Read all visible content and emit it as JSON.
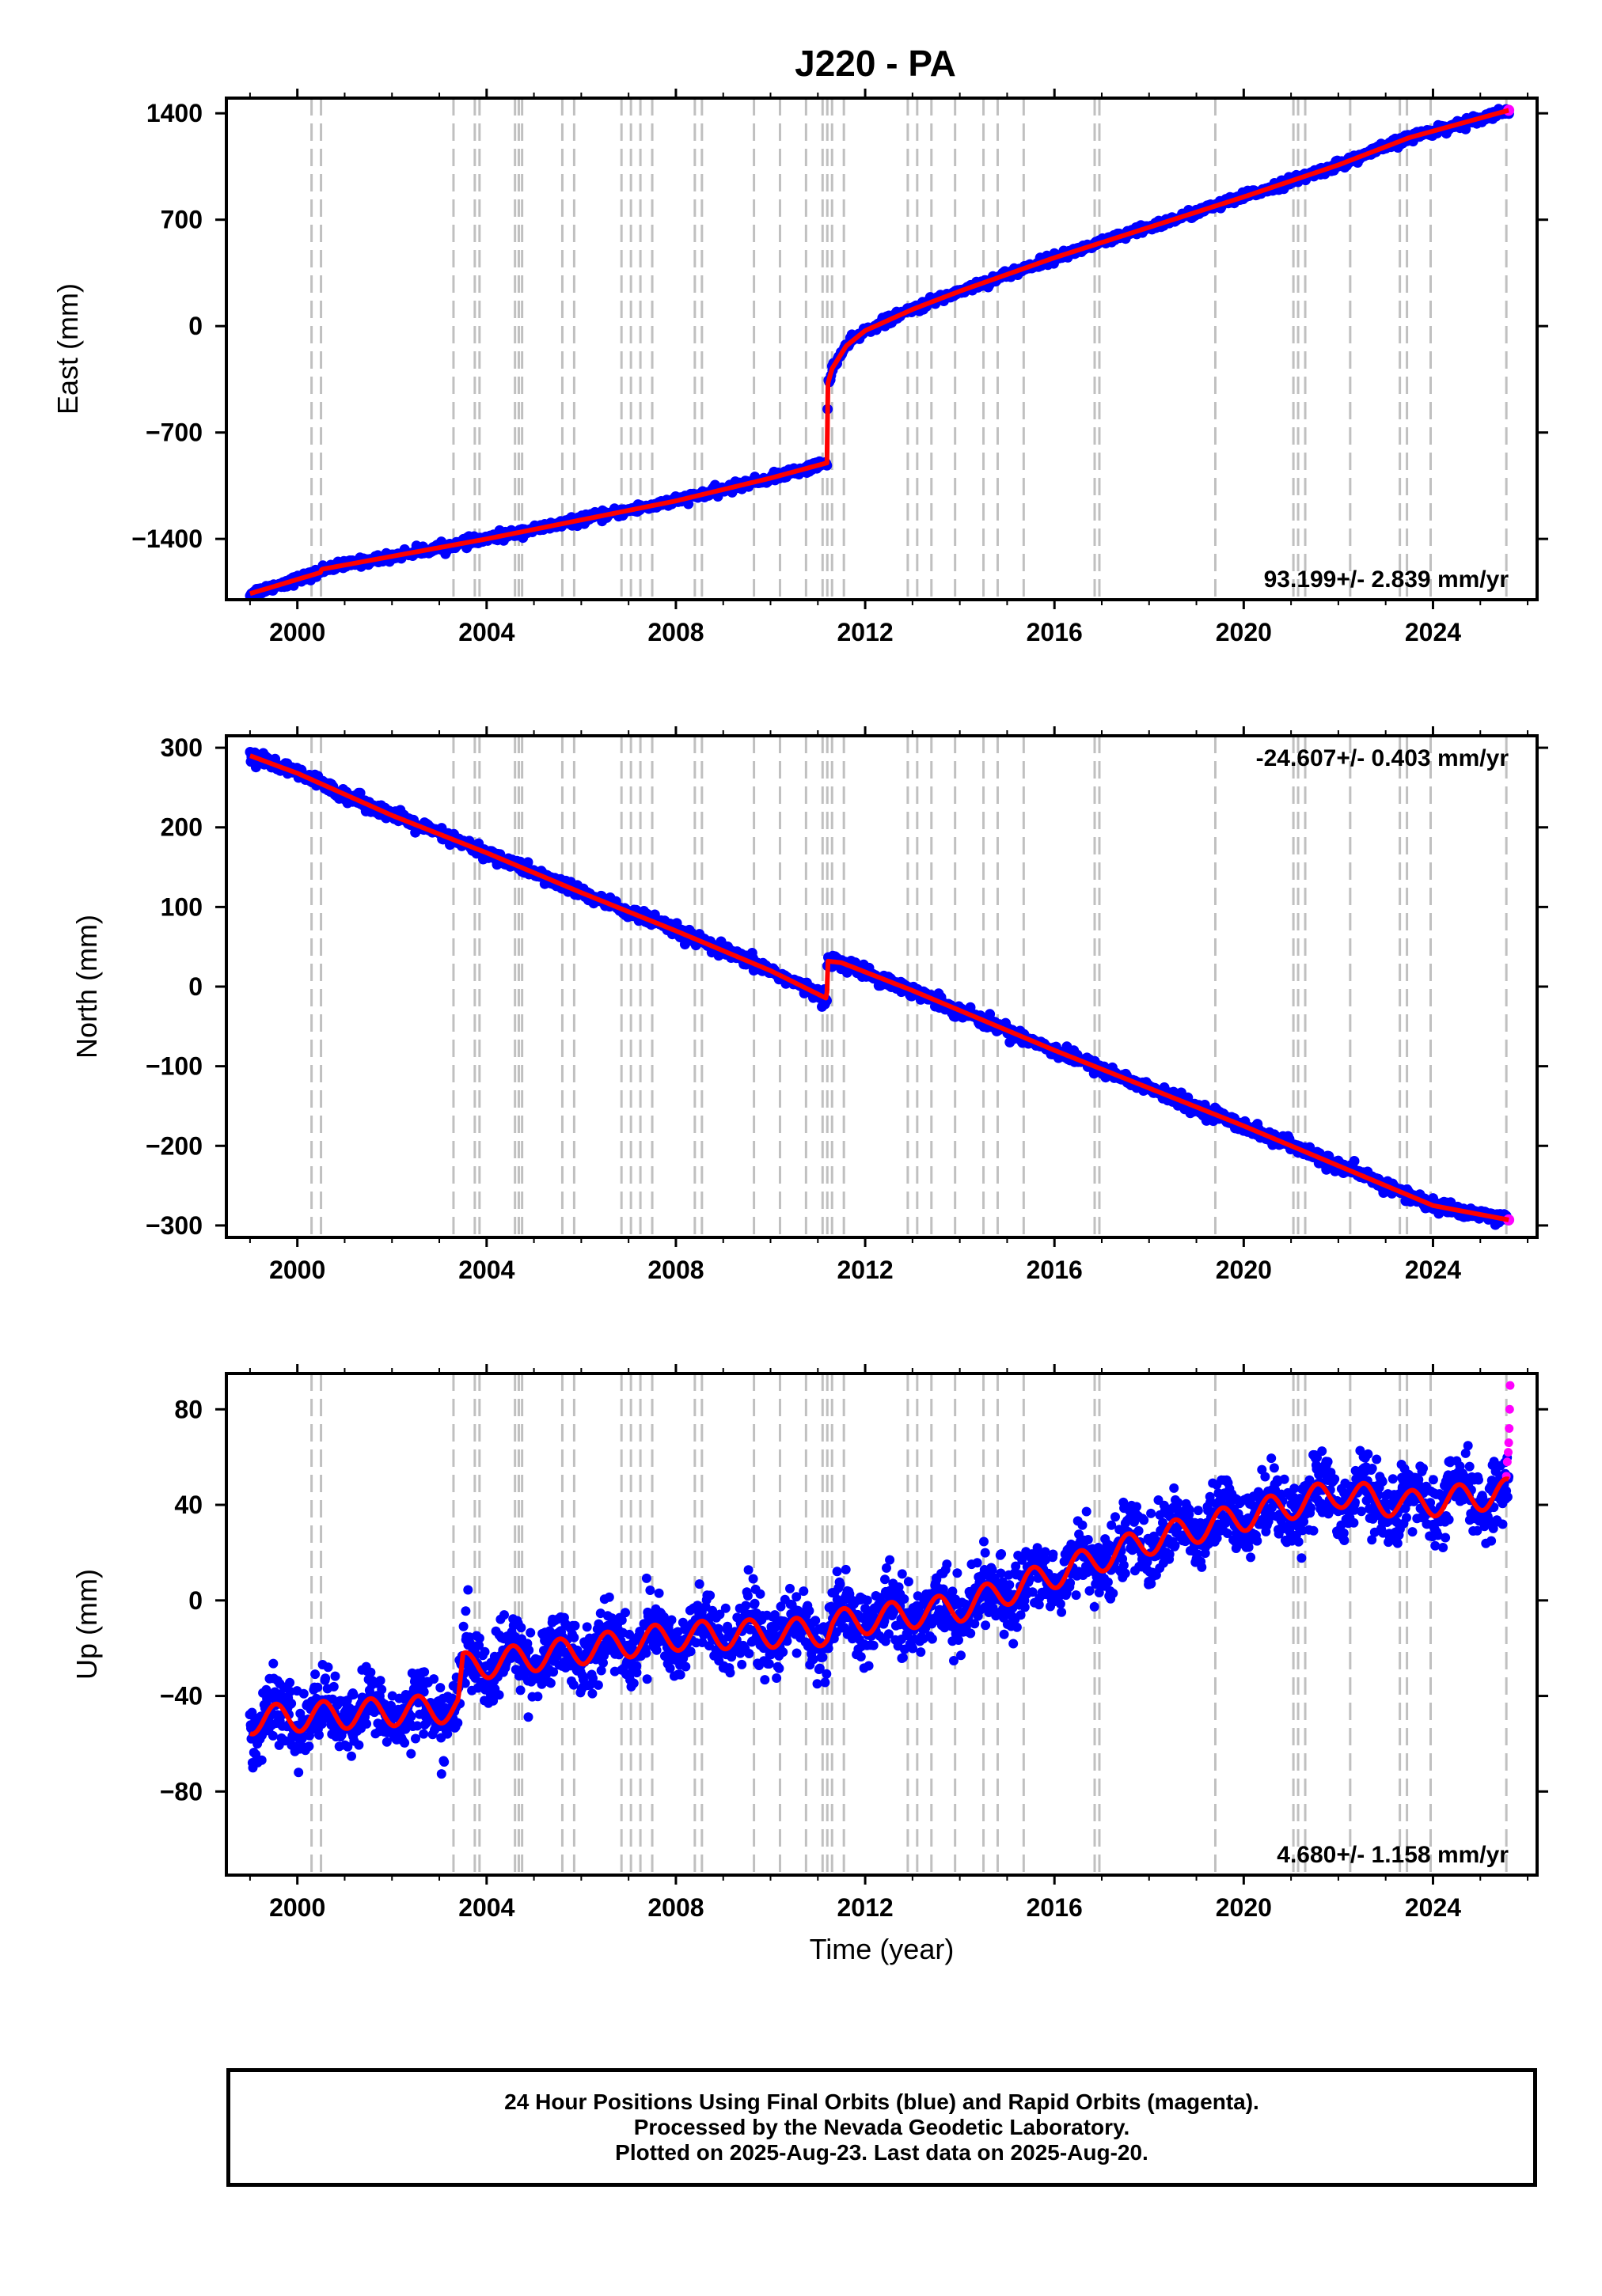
{
  "title": "J220 - PA",
  "colors": {
    "final_orbits": "#0000ff",
    "rapid_orbits": "#ff00ff",
    "model": "#ff0000",
    "event_lines": "#c0c0c0",
    "frame": "#000000"
  },
  "chart_data": [
    {
      "type": "scatter",
      "title": "J220 - PA",
      "xlabel": "",
      "ylabel": "East (mm)",
      "xlim": [
        1998.5,
        2026.2
      ],
      "ylim": [
        -1800,
        1500
      ],
      "xticks": [
        2000,
        2004,
        2008,
        2012,
        2016,
        2020,
        2024
      ],
      "xtick_labels": [
        "2000",
        "2004",
        "2008",
        "2012",
        "2016",
        "2020",
        "2024"
      ],
      "yticks": [
        1400,
        700,
        0,
        -700,
        -1400
      ],
      "ytick_labels": [
        "1400",
        "700",
        "0",
        "−700",
        "−1400"
      ],
      "rate_label": "93.199+/- 2.839 mm/yr",
      "rate_position": "bottom-right",
      "grid": false,
      "series": [
        {
          "name": "",
          "type": "line",
          "x": [
            1999.0,
            2000.5,
            2000.51,
            2004.0,
            2008.0,
            2010.0,
            2011.19,
            2011.2,
            2011.21,
            2011.3,
            2011.6,
            2012.0,
            2013.0,
            2014.0,
            2016.0,
            2018.0,
            2020.0,
            2022.0,
            2023.5,
            2025.6
          ],
          "y": [
            -1760,
            -1620,
            -1600,
            -1400,
            -1150,
            -1000,
            -900,
            -900,
            -380,
            -280,
            -130,
            -30,
            110,
            230,
            450,
            650,
            850,
            1060,
            1240,
            1420
          ]
        }
      ]
    },
    {
      "type": "scatter",
      "xlabel": "",
      "ylabel": "North (mm)",
      "xlim": [
        1998.5,
        2026.2
      ],
      "ylim": [
        -315,
        315
      ],
      "xticks": [
        2000,
        2004,
        2008,
        2012,
        2016,
        2020,
        2024
      ],
      "xtick_labels": [
        "2000",
        "2004",
        "2008",
        "2012",
        "2016",
        "2020",
        "2024"
      ],
      "yticks": [
        300,
        200,
        100,
        0,
        -100,
        -200,
        -300
      ],
      "ytick_labels": [
        "300",
        "200",
        "100",
        "0",
        "−100",
        "−200",
        "−300"
      ],
      "rate_label": "-24.607+/- 0.403 mm/yr",
      "rate_position": "top-right",
      "grid": false,
      "series": [
        {
          "name": "",
          "type": "line",
          "x": [
            1999.0,
            2000.0,
            2002.0,
            2004.0,
            2006.0,
            2008.0,
            2010.0,
            2011.19,
            2011.2,
            2011.5,
            2013.0,
            2016.0,
            2020.0,
            2024.0,
            2025.6
          ],
          "y": [
            290,
            268,
            215,
            168,
            118,
            70,
            20,
            -15,
            32,
            30,
            -5,
            -80,
            -175,
            -275,
            -293
          ]
        }
      ]
    },
    {
      "type": "scatter",
      "xlabel": "Time (year)",
      "ylabel": "Up (mm)",
      "xlim": [
        1998.5,
        2026.2
      ],
      "ylim": [
        -115,
        95
      ],
      "xticks": [
        2000,
        2004,
        2008,
        2012,
        2016,
        2020,
        2024
      ],
      "xtick_labels": [
        "2000",
        "2004",
        "2008",
        "2012",
        "2016",
        "2020",
        "2024"
      ],
      "yticks": [
        80,
        40,
        0,
        -40,
        -80
      ],
      "ytick_labels": [
        "80",
        "40",
        "0",
        "−40",
        "−80"
      ],
      "rate_label": "4.680+/- 1.158 mm/yr",
      "rate_position": "bottom-right",
      "grid": false,
      "trend": {
        "x": [
          1999.0,
          2003.4,
          2003.5,
          2008.0,
          2011.2,
          2011.3,
          2014.0,
          2018.0,
          2022.0,
          2023.4,
          2023.5,
          2025.6
        ],
        "y": [
          -50,
          -45,
          -28,
          -15,
          -13,
          -10,
          -3,
          25,
          45,
          40,
          40,
          45
        ],
        "seasonal_amplitude_mm": 6
      },
      "rapid_orbits": {
        "x": [
          2025.55,
          2025.57,
          2025.59,
          2025.6,
          2025.61,
          2025.62,
          2025.63
        ],
        "y": [
          52,
          58,
          62,
          66,
          72,
          80,
          90
        ]
      }
    }
  ],
  "event_line_years": [
    2000.3,
    2000.5,
    2003.3,
    2003.75,
    2003.85,
    2004.6,
    2004.68,
    2004.75,
    2005.6,
    2005.85,
    2006.85,
    2007.05,
    2007.25,
    2007.5,
    2008.4,
    2008.55,
    2009.65,
    2010.2,
    2010.75,
    2011.1,
    2011.2,
    2011.3,
    2011.55,
    2012.9,
    2013.1,
    2013.4,
    2013.9,
    2014.5,
    2014.8,
    2015.35,
    2016.85,
    2016.95,
    2019.4,
    2021.05,
    2021.15,
    2021.3,
    2022.25,
    2023.3,
    2023.45,
    2023.95,
    2025.55
  ],
  "footer": {
    "line1": "24 Hour Positions Using Final Orbits (blue) and Rapid Orbits (magenta).",
    "line2": "Processed by the Nevada Geodetic Laboratory.",
    "line3": "Plotted on 2025-Aug-23. Last data on 2025-Aug-20."
  }
}
